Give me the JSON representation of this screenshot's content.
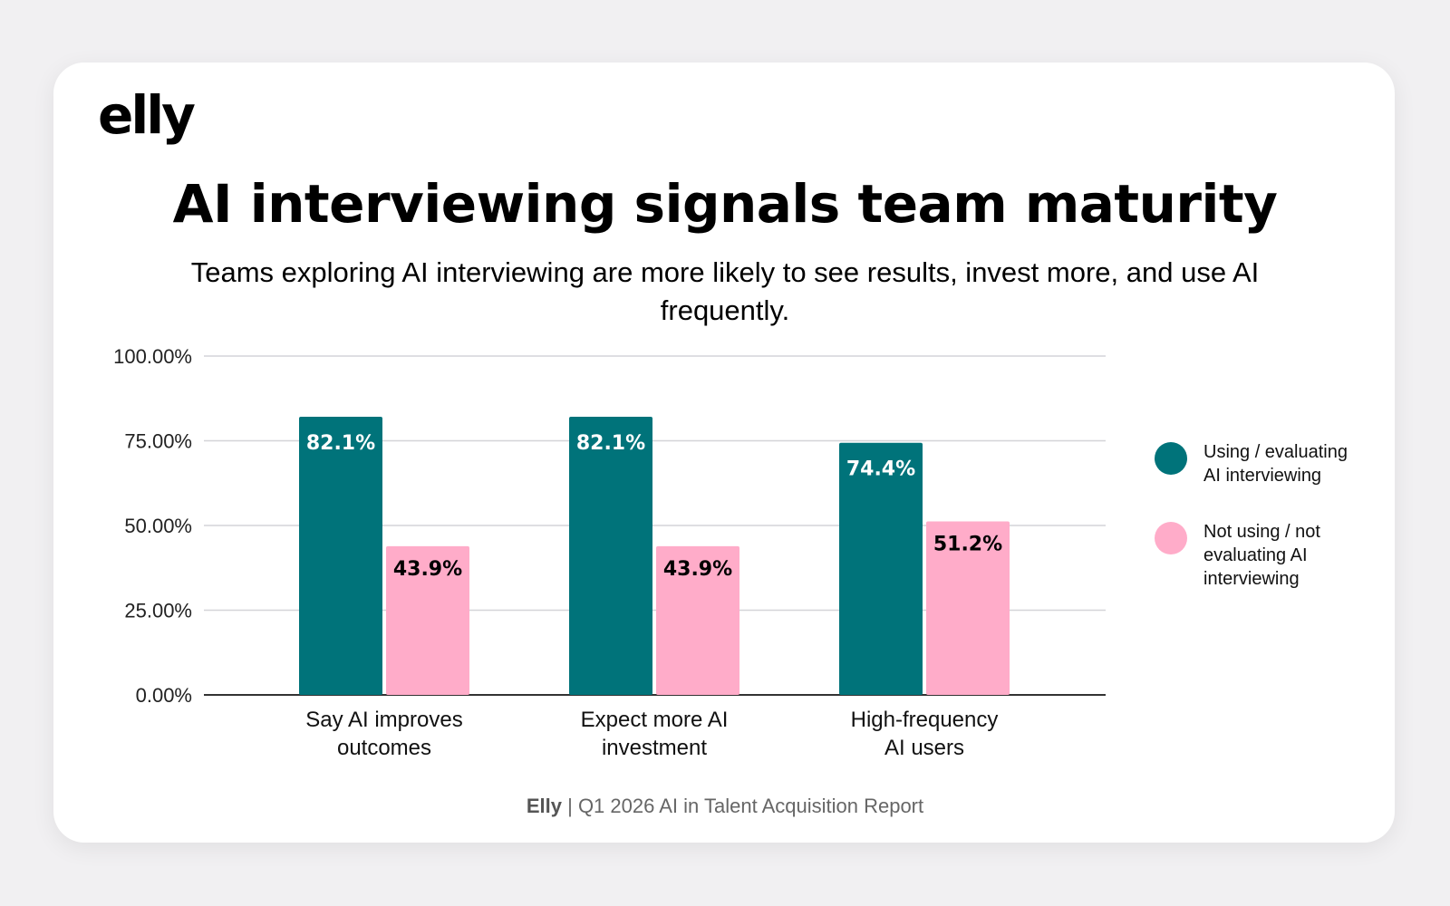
{
  "logo": {
    "text": "elly"
  },
  "chart_data": {
    "type": "bar",
    "title": "AI interviewing signals team maturity",
    "subtitle": "Teams exploring AI interviewing are more likely to see results, invest more, and use AI frequently.",
    "categories": [
      [
        "Say AI improves",
        "outcomes"
      ],
      [
        "Expect more AI",
        "investment"
      ],
      [
        "High-frequency",
        "AI users"
      ]
    ],
    "series": [
      {
        "name": "Using / evaluating AI interviewing",
        "legend_lines": [
          "Using / evaluating",
          "AI interviewing"
        ],
        "color": "#00737a",
        "label_color": "#ffffff",
        "values": [
          82.1,
          82.1,
          74.4
        ],
        "labels": [
          "82.1%",
          "82.1%",
          "74.4%"
        ]
      },
      {
        "name": "Not using / not evaluating AI interviewing",
        "legend_lines": [
          "Not using / not",
          "evaluating AI",
          "interviewing"
        ],
        "color": "#ffacc9",
        "label_color": "#000000",
        "values": [
          43.9,
          43.9,
          51.2
        ],
        "labels": [
          "43.9%",
          "43.9%",
          "51.2%"
        ]
      }
    ],
    "ylim": [
      0,
      100
    ],
    "yticks": [
      0,
      25,
      50,
      75,
      100
    ],
    "ytick_labels": [
      "0.00%",
      "25.00%",
      "50.00%",
      "75.00%",
      "100.00%"
    ],
    "xlabel": "",
    "ylabel": "",
    "grid": true,
    "legend_position": "right"
  },
  "footer": {
    "brand": "Elly",
    "text": " | Q1 2026 AI in Talent Acquisition Report"
  }
}
